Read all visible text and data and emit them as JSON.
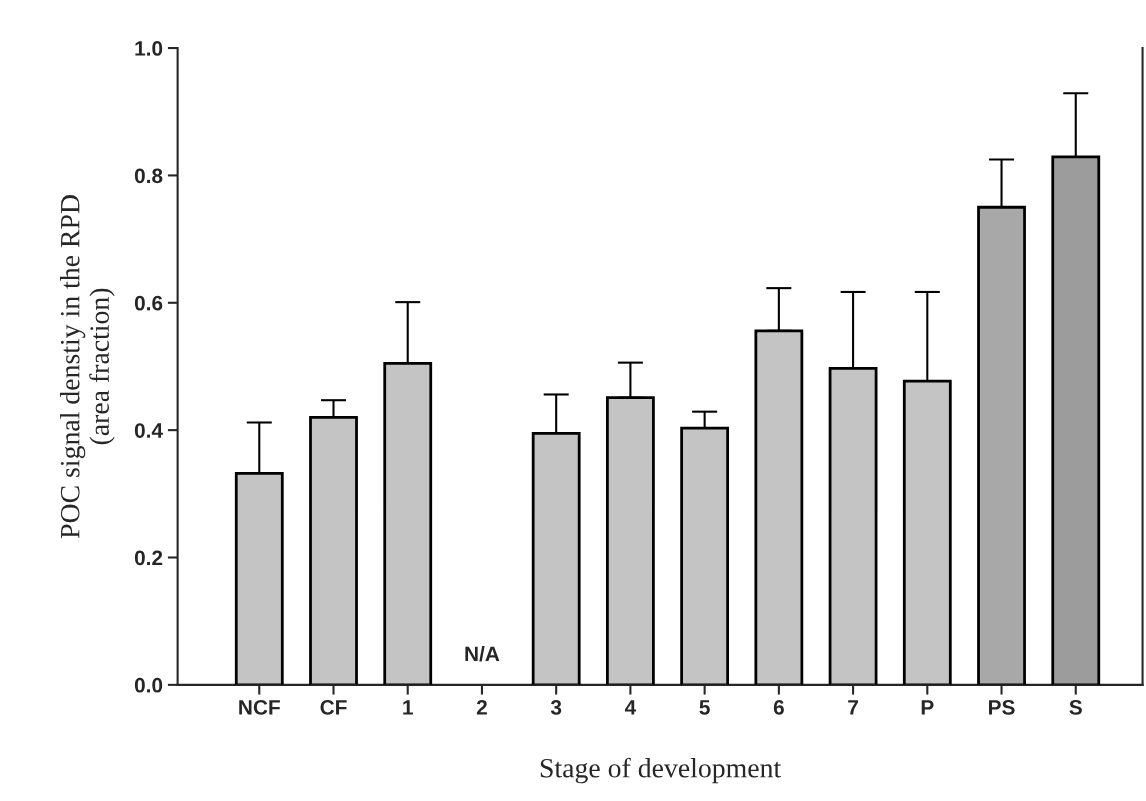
{
  "chart_data": {
    "type": "bar",
    "xlabel": "Stage of development",
    "ylabel": "POC signal denstiy in the RPD\n(area fraction)",
    "categories": [
      "NCF",
      "CF",
      "1",
      "2",
      "3",
      "4",
      "5",
      "6",
      "7",
      "P",
      "PS",
      "S"
    ],
    "values": [
      0.332,
      0.42,
      0.505,
      null,
      0.395,
      0.451,
      0.403,
      0.556,
      0.497,
      0.477,
      0.75,
      0.829
    ],
    "errors": [
      0.08,
      0.027,
      0.096,
      null,
      0.061,
      0.055,
      0.026,
      0.067,
      0.12,
      0.14,
      0.075,
      0.1
    ],
    "colors": [
      "#c4c4c4",
      "#c4c4c4",
      "#c4c4c4",
      "#c4c4c4",
      "#c4c4c4",
      "#c4c4c4",
      "#c4c4c4",
      "#c4c4c4",
      "#c4c4c4",
      "#c4c4c4",
      "#a8a8a8",
      "#9c9c9c"
    ],
    "ylim": [
      0,
      1.0
    ],
    "yticks": [
      {
        "value": 0,
        "label": "0.0"
      },
      0.2,
      0.4,
      0.6,
      0.8,
      {
        "value": 1,
        "label": "1.0"
      }
    ],
    "annotations": [
      "N/A"
    ]
  }
}
